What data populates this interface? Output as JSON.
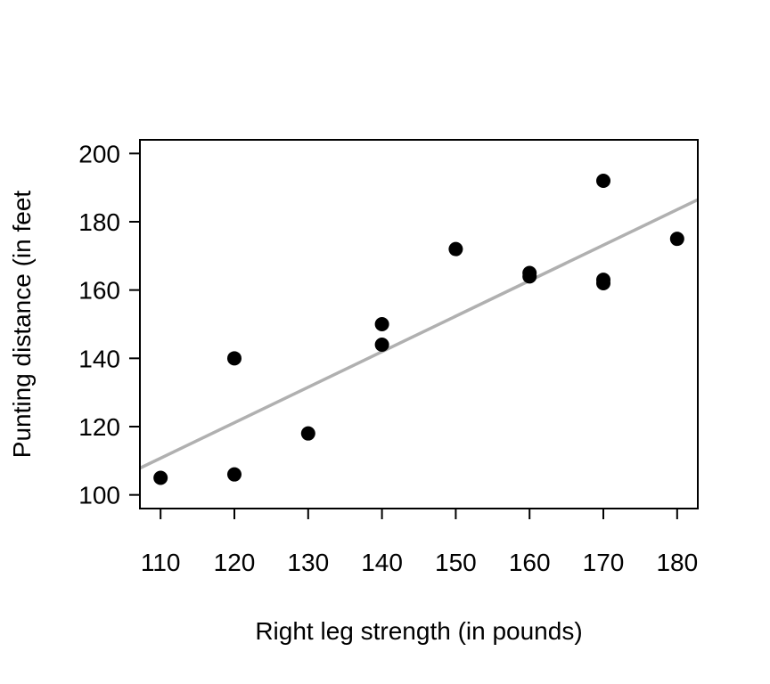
{
  "chart_data": {
    "type": "scatter",
    "title": "",
    "xlabel": "Right leg strength (in pounds)",
    "ylabel": "Punting distance (in feet",
    "xlim": [
      107.2,
      182.8
    ],
    "ylim": [
      96,
      204
    ],
    "xticks": [
      110,
      120,
      130,
      140,
      150,
      160,
      170,
      180
    ],
    "yticks": [
      100,
      120,
      140,
      160,
      180,
      200
    ],
    "grid": false,
    "points": [
      {
        "x": 110,
        "y": 105
      },
      {
        "x": 120,
        "y": 106
      },
      {
        "x": 120,
        "y": 140
      },
      {
        "x": 130,
        "y": 118
      },
      {
        "x": 140,
        "y": 144
      },
      {
        "x": 140,
        "y": 150
      },
      {
        "x": 150,
        "y": 172
      },
      {
        "x": 160,
        "y": 164
      },
      {
        "x": 160,
        "y": 165
      },
      {
        "x": 170,
        "y": 162
      },
      {
        "x": 170,
        "y": 163
      },
      {
        "x": 170,
        "y": 192
      },
      {
        "x": 180,
        "y": 175
      }
    ],
    "fit_line": {
      "intercept": -3.65,
      "slope": 1.04
    },
    "colors": {
      "points": "#000000",
      "fit_line": "#b0b0b0",
      "axes": "#000000"
    }
  }
}
